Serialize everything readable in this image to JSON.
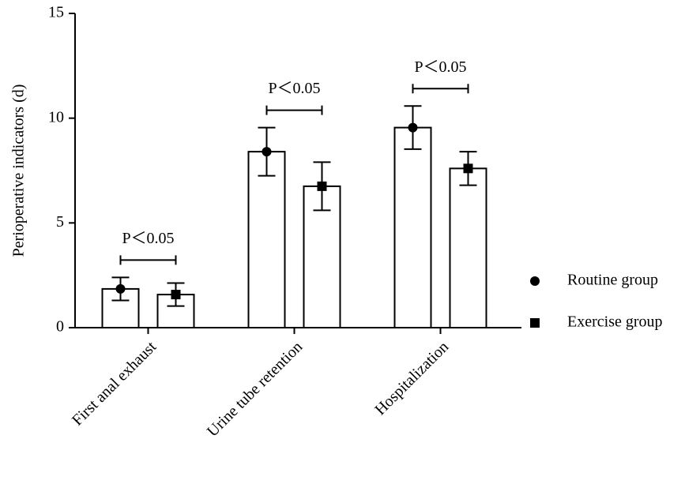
{
  "chart_data": {
    "type": "bar",
    "ylabel": "Perioperative indicators (d)",
    "categories": [
      "First anal exhaust",
      "Urine tube retention",
      "Hospitalization"
    ],
    "series": [
      {
        "name": "Routine group",
        "color": "#ffffff",
        "marker": "circle",
        "values": [
          1.85,
          8.4,
          9.55
        ],
        "errors": [
          0.55,
          1.15,
          1.03
        ]
      },
      {
        "name": "Exercise group",
        "color": "#ffffff",
        "marker": "square",
        "values": [
          1.58,
          6.75,
          7.6
        ],
        "errors": [
          0.55,
          1.15,
          0.8
        ]
      }
    ],
    "annotations": [
      "P＜0.05",
      "P＜0.05",
      "P＜0.05"
    ],
    "ylim": [
      0,
      15
    ],
    "yticks": [
      0,
      5,
      10,
      15
    ],
    "legend": "right"
  }
}
